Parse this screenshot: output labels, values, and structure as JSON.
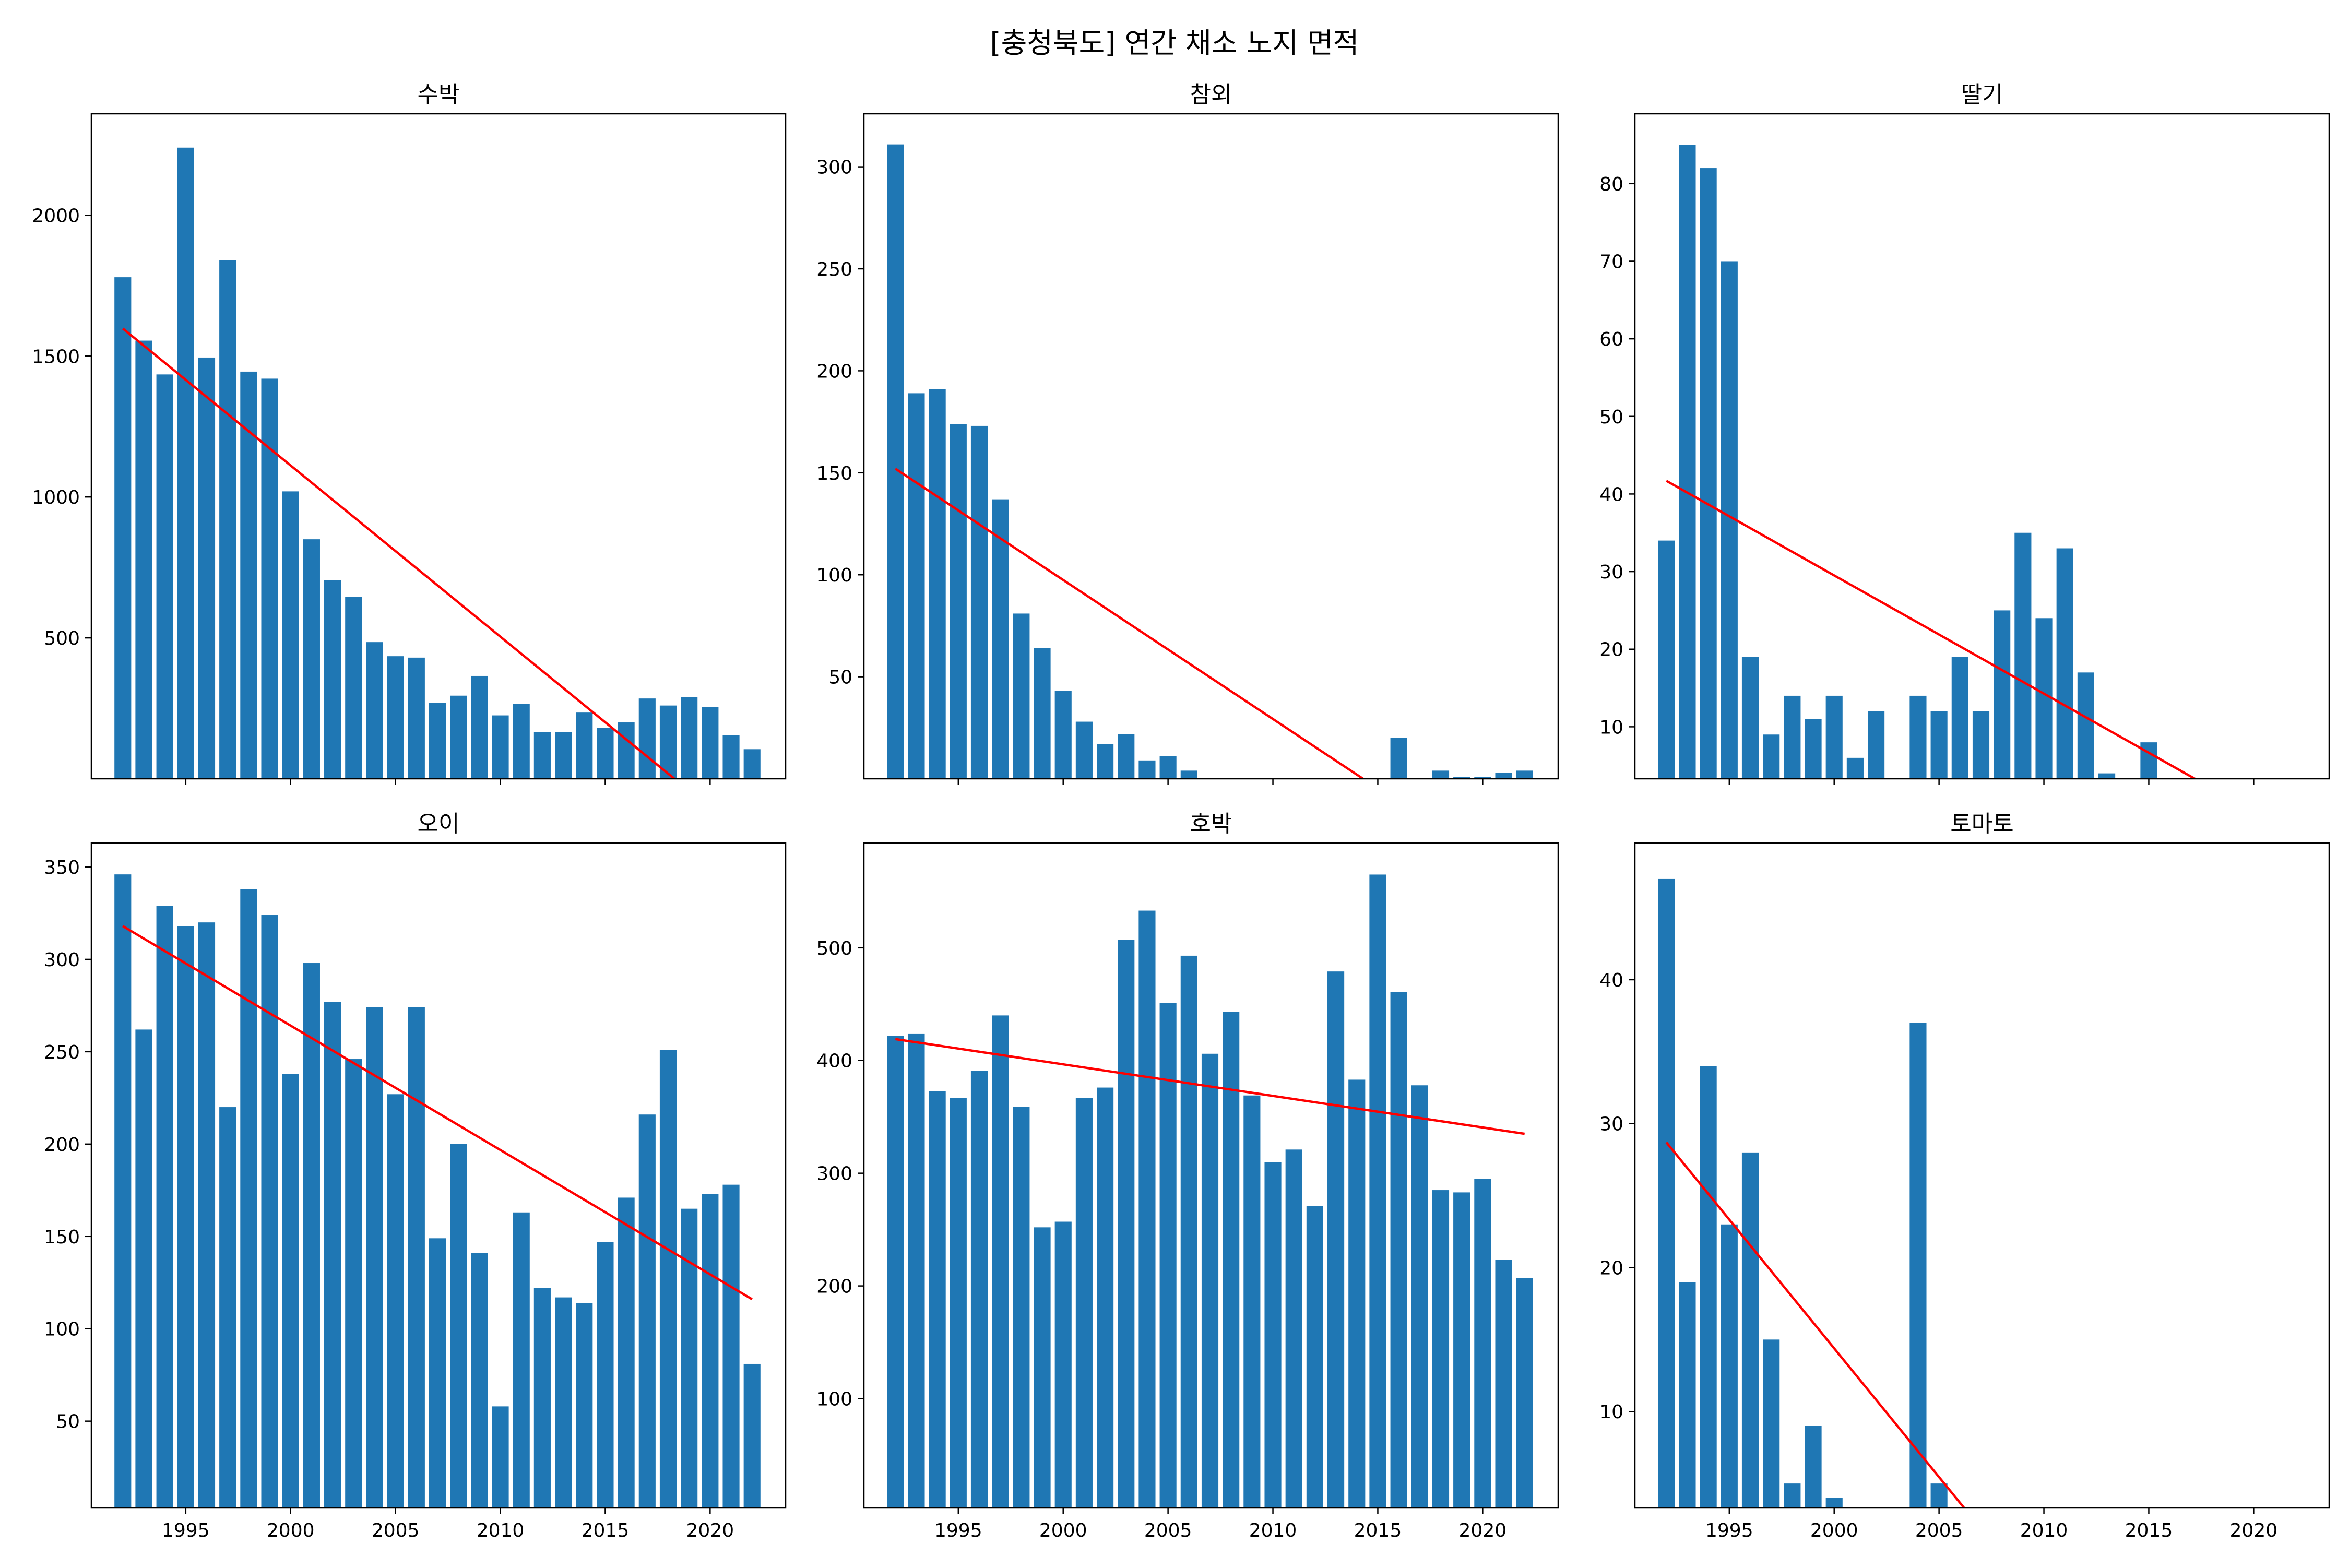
{
  "figure": {
    "title": "[충청북도] 연간 채소 노지 면적",
    "bar_color": "#1f77b4",
    "trend_color": "#ff0000",
    "shared_x_ticks": [
      1995,
      2000,
      2005,
      2010,
      2015,
      2020
    ]
  },
  "chart_data": [
    {
      "type": "bar",
      "title": "수박",
      "xlabel": "",
      "ylabel": "",
      "x": [
        1992,
        1993,
        1994,
        1995,
        1996,
        1997,
        1998,
        1999,
        2000,
        2001,
        2002,
        2003,
        2004,
        2005,
        2006,
        2007,
        2008,
        2009,
        2010,
        2011,
        2012,
        2013,
        2014,
        2015,
        2016,
        2017,
        2018,
        2019,
        2020,
        2021,
        2022
      ],
      "values": [
        1780,
        1555,
        1435,
        2240,
        1495,
        1840,
        1445,
        1420,
        1020,
        850,
        705,
        645,
        485,
        435,
        430,
        270,
        295,
        365,
        225,
        265,
        165,
        165,
        235,
        180,
        200,
        285,
        260,
        290,
        255,
        155,
        105
      ],
      "ylim": [
        0,
        2360
      ],
      "xlim": [
        1990.5,
        2023.6
      ],
      "yticks": [
        500,
        1000,
        1500,
        2000
      ],
      "trend": {
        "x": [
          1992,
          2018.3
        ],
        "y": [
          1598,
          0
        ]
      },
      "grid": false
    },
    {
      "type": "bar",
      "title": "참외",
      "xlabel": "",
      "ylabel": "",
      "x": [
        1992,
        1993,
        1994,
        1995,
        1996,
        1997,
        1998,
        1999,
        2000,
        2001,
        2002,
        2003,
        2004,
        2005,
        2006,
        2007,
        2008,
        2009,
        2010,
        2011,
        2012,
        2013,
        2014,
        2015,
        2016,
        2017,
        2018,
        2019,
        2020,
        2021,
        2022
      ],
      "values": [
        311,
        189,
        191,
        174,
        173,
        137,
        81,
        64,
        43,
        28,
        17,
        22,
        9,
        11,
        4,
        0,
        0,
        0,
        0,
        0,
        0,
        0,
        0,
        0,
        20,
        0,
        4,
        1,
        1,
        3,
        4
      ],
      "ylim": [
        0,
        326
      ],
      "xlim": [
        1990.5,
        2023.6
      ],
      "yticks": [
        50,
        100,
        150,
        200,
        250,
        300
      ],
      "trend": {
        "x": [
          1992,
          2014.3
        ],
        "y": [
          152,
          0
        ]
      },
      "grid": false
    },
    {
      "type": "bar",
      "title": "딸기",
      "xlabel": "",
      "ylabel": "",
      "x": [
        1992,
        1993,
        1994,
        1995,
        1996,
        1997,
        1998,
        1999,
        2000,
        2001,
        2002,
        2003,
        2004,
        2005,
        2006,
        2007,
        2008,
        2009,
        2010,
        2011,
        2012,
        2013,
        2014,
        2015,
        2016,
        2017,
        2018,
        2019,
        2020,
        2021,
        2022
      ],
      "values": [
        34,
        85,
        82,
        70,
        19,
        9,
        14,
        11,
        14,
        6,
        12,
        0,
        14,
        12,
        19,
        12,
        25,
        35,
        24,
        33,
        17,
        4,
        0,
        8,
        0,
        0,
        0,
        0,
        0,
        0,
        0
      ],
      "ylim": [
        3.3,
        89
      ],
      "xlim": [
        1990.5,
        2023.6
      ],
      "yticks": [
        10,
        20,
        30,
        40,
        50,
        60,
        70,
        80
      ],
      "trend": {
        "x": [
          1992,
          2017.2
        ],
        "y": [
          41.7,
          3.3
        ]
      },
      "grid": false
    },
    {
      "type": "bar",
      "title": "오이",
      "xlabel": "",
      "ylabel": "",
      "x": [
        1992,
        1993,
        1994,
        1995,
        1996,
        1997,
        1998,
        1999,
        2000,
        2001,
        2002,
        2003,
        2004,
        2005,
        2006,
        2007,
        2008,
        2009,
        2010,
        2011,
        2012,
        2013,
        2014,
        2015,
        2016,
        2017,
        2018,
        2019,
        2020,
        2021,
        2022
      ],
      "values": [
        346,
        262,
        329,
        318,
        320,
        220,
        338,
        324,
        238,
        298,
        277,
        246,
        274,
        227,
        274,
        149,
        200,
        141,
        58,
        163,
        122,
        117,
        114,
        147,
        171,
        216,
        251,
        165,
        173,
        178,
        81
      ],
      "ylim": [
        3,
        363
      ],
      "xlim": [
        1990.5,
        2023.6
      ],
      "yticks": [
        50,
        100,
        150,
        200,
        250,
        300,
        350
      ],
      "trend": {
        "x": [
          1992,
          2022
        ],
        "y": [
          318,
          116
        ]
      },
      "grid": false
    },
    {
      "type": "bar",
      "title": "호박",
      "xlabel": "",
      "ylabel": "",
      "x": [
        1992,
        1993,
        1994,
        1995,
        1996,
        1997,
        1998,
        1999,
        2000,
        2001,
        2002,
        2003,
        2004,
        2005,
        2006,
        2007,
        2008,
        2009,
        2010,
        2011,
        2012,
        2013,
        2014,
        2015,
        2016,
        2017,
        2018,
        2019,
        2020,
        2021,
        2022
      ],
      "values": [
        422,
        424,
        373,
        367,
        391,
        440,
        359,
        252,
        257,
        367,
        376,
        507,
        533,
        451,
        493,
        406,
        443,
        369,
        310,
        321,
        271,
        479,
        383,
        565,
        461,
        378,
        285,
        283,
        295,
        223,
        207
      ],
      "ylim": [
        3,
        593
      ],
      "xlim": [
        1990.5,
        2023.6
      ],
      "yticks": [
        100,
        200,
        300,
        400,
        500
      ],
      "trend": {
        "x": [
          1992,
          2022
        ],
        "y": [
          419,
          335
        ]
      },
      "grid": false
    },
    {
      "type": "bar",
      "title": "토마토",
      "xlabel": "",
      "ylabel": "",
      "x": [
        1992,
        1993,
        1994,
        1995,
        1996,
        1997,
        1998,
        1999,
        2000,
        2001,
        2002,
        2003,
        2004,
        2005,
        2006,
        2007,
        2008,
        2009,
        2010,
        2011,
        2012,
        2013,
        2014,
        2015,
        2016,
        2017,
        2018,
        2019,
        2020,
        2021,
        2022
      ],
      "values": [
        47,
        19,
        34,
        23,
        28,
        15,
        5,
        9,
        4,
        0,
        0,
        0,
        37,
        5,
        0,
        0,
        0,
        0,
        0,
        0,
        0,
        0,
        0,
        0,
        0,
        0,
        0,
        0,
        0,
        0,
        0
      ],
      "ylim": [
        3.3,
        49.5
      ],
      "xlim": [
        1990.5,
        2023.6
      ],
      "yticks": [
        10,
        20,
        30,
        40
      ],
      "trend": {
        "x": [
          1992,
          2006.2
        ],
        "y": [
          28.7,
          3.3
        ]
      },
      "grid": false
    }
  ]
}
